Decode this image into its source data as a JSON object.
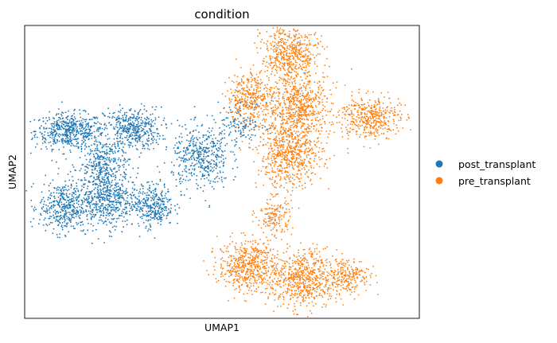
{
  "chart_data": {
    "type": "scatter",
    "title": "condition",
    "xlabel": "UMAP1",
    "ylabel": "UMAP2",
    "grid": false,
    "ticks": false,
    "legend_placement": "right",
    "series": [
      {
        "name": "post_transplant",
        "color": "#1f77b4",
        "clusters": [
          {
            "cx": -8.5,
            "cy": 4.6,
            "rx": 1.9,
            "ry": 0.9,
            "n": 520
          },
          {
            "cx": -5.0,
            "cy": 4.7,
            "rx": 1.6,
            "ry": 1.1,
            "n": 440
          },
          {
            "cx": -6.6,
            "cy": 2.9,
            "rx": 1.4,
            "ry": 1.3,
            "n": 320
          },
          {
            "cx": -8.8,
            "cy": 0.7,
            "rx": 1.4,
            "ry": 1.3,
            "n": 420
          },
          {
            "cx": -6.4,
            "cy": 1.1,
            "rx": 1.6,
            "ry": 1.5,
            "n": 520
          },
          {
            "cx": -3.8,
            "cy": 0.8,
            "rx": 1.1,
            "ry": 1.1,
            "n": 320
          },
          {
            "cx": -1.2,
            "cy": 3.2,
            "rx": 1.6,
            "ry": 1.6,
            "n": 440
          },
          {
            "cx": 1.0,
            "cy": 5.0,
            "rx": 1.5,
            "ry": 1.1,
            "n": 160
          }
        ]
      },
      {
        "name": "pre_transplant",
        "color": "#ff7f0e",
        "clusters": [
          {
            "cx": 3.8,
            "cy": 8.5,
            "rx": 1.6,
            "ry": 1.6,
            "n": 560
          },
          {
            "cx": 1.6,
            "cy": 6.3,
            "rx": 1.3,
            "ry": 1.3,
            "n": 360
          },
          {
            "cx": 4.3,
            "cy": 5.8,
            "rx": 1.7,
            "ry": 1.5,
            "n": 560
          },
          {
            "cx": 3.8,
            "cy": 3.4,
            "rx": 1.8,
            "ry": 1.7,
            "n": 640
          },
          {
            "cx": 8.2,
            "cy": 5.3,
            "rx": 1.7,
            "ry": 1.1,
            "n": 430
          },
          {
            "cx": 2.9,
            "cy": 0.2,
            "rx": 1.0,
            "ry": 1.0,
            "n": 160
          },
          {
            "cx": 1.4,
            "cy": -2.3,
            "rx": 1.6,
            "ry": 1.3,
            "n": 520
          },
          {
            "cx": 4.5,
            "cy": -3.0,
            "rx": 1.9,
            "ry": 1.5,
            "n": 640
          },
          {
            "cx": 7.0,
            "cy": -2.8,
            "rx": 1.2,
            "ry": 0.9,
            "n": 220
          }
        ]
      }
    ],
    "xlim": [
      -11,
      11
    ],
    "ylim": [
      -5,
      10
    ]
  }
}
